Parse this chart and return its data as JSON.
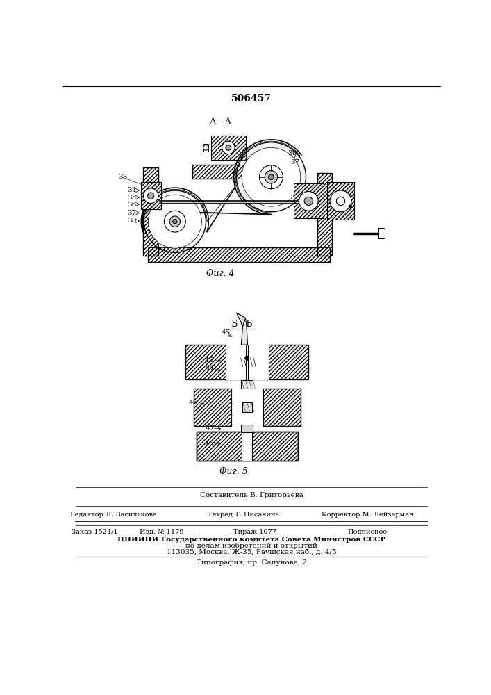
{
  "patent_number": "506457",
  "fig4_label": "А - А",
  "fig4_caption": "Фиг. 4",
  "fig5_label": "Б - Б",
  "fig5_caption": "Фuг. 5",
  "footer_composer": "Составитель В. Григорьева",
  "footer_editor": "Редактор Л. Василькова",
  "footer_techred": "Техред Т. Писакина",
  "footer_corrector": "Корректор М. Лейзерман",
  "footer_order": "Заказ 1524/1",
  "footer_izd": "Изд. № 1179",
  "footer_tirazh": "Тираж 1077",
  "footer_podpisnoe": "Подписное",
  "footer_cniip": "ЦНИИПИ Государственного комитета Совета Министров СССР",
  "footer_cniip2": "по делам изобретений и открытий",
  "footer_addr": "113035, Москва, Ж-35, Раушская наб., д. 4/5",
  "footer_typog": "Типография, пр. Сапунова, 2",
  "bg_color": "#ffffff"
}
